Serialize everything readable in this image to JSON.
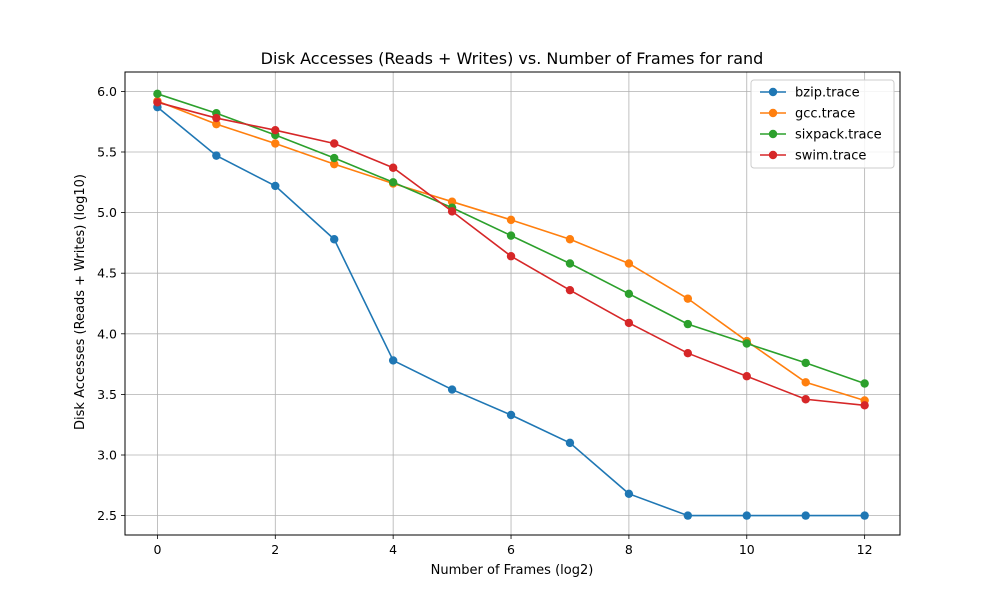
{
  "chart_data": {
    "type": "line",
    "title": "Disk Accesses (Reads + Writes) vs. Number of Frames for rand",
    "xlabel": "Number of Frames (log2)",
    "ylabel": "Disk Accesses (Reads + Writes) (log10)",
    "xlim": [
      -0.55,
      12.6
    ],
    "ylim": [
      2.34,
      6.16
    ],
    "xticks": [
      0,
      2,
      4,
      6,
      8,
      10,
      12
    ],
    "yticks": [
      2.5,
      3.0,
      3.5,
      4.0,
      4.5,
      5.0,
      5.5,
      6.0
    ],
    "xtick_labels": [
      "0",
      "2",
      "4",
      "6",
      "8",
      "10",
      "12"
    ],
    "ytick_labels": [
      "2.5",
      "3.0",
      "3.5",
      "4.0",
      "4.5",
      "5.0",
      "5.5",
      "6.0"
    ],
    "grid": true,
    "legend_position": "top-right",
    "x": [
      0,
      1,
      2,
      3,
      4,
      5,
      6,
      7,
      8,
      9,
      10,
      11,
      12
    ],
    "series": [
      {
        "name": "bzip.trace",
        "color": "#1f77b4",
        "values": [
          5.87,
          5.47,
          5.22,
          4.78,
          3.78,
          3.54,
          3.33,
          3.1,
          2.68,
          2.5,
          2.5,
          2.5,
          2.5
        ]
      },
      {
        "name": "gcc.trace",
        "color": "#ff7f0e",
        "values": [
          5.92,
          5.73,
          5.57,
          5.4,
          5.24,
          5.09,
          4.94,
          4.78,
          4.58,
          4.29,
          3.94,
          3.6,
          3.45
        ]
      },
      {
        "name": "sixpack.trace",
        "color": "#2ca02c",
        "values": [
          5.98,
          5.82,
          5.64,
          5.45,
          5.25,
          5.04,
          4.81,
          4.58,
          4.33,
          4.08,
          3.92,
          3.76,
          3.59
        ]
      },
      {
        "name": "swim.trace",
        "color": "#d62728",
        "values": [
          5.91,
          5.78,
          5.68,
          5.57,
          5.37,
          5.01,
          4.64,
          4.36,
          4.09,
          3.84,
          3.65,
          3.46,
          3.41
        ]
      }
    ]
  }
}
